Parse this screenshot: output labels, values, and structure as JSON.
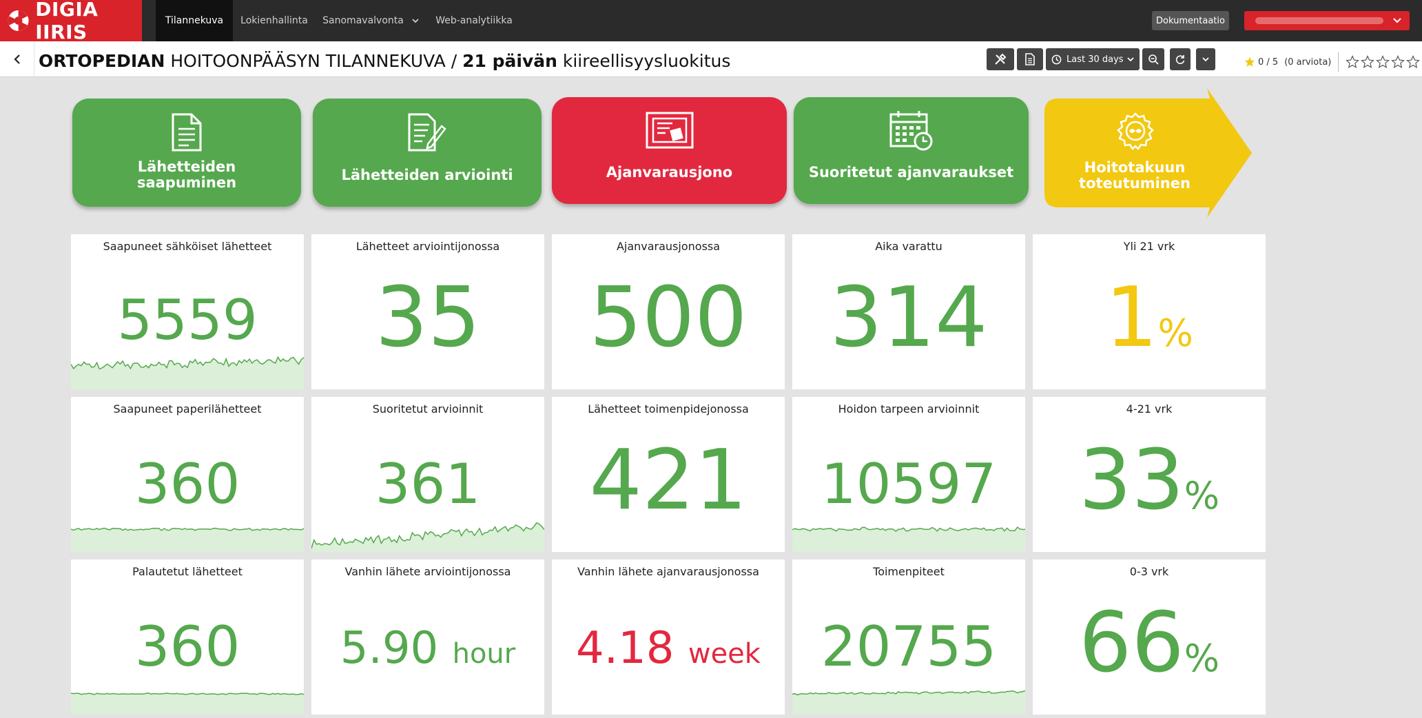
{
  "topbar": {
    "logo_text": "DIGIA IIRIS",
    "nav": [
      {
        "label": "Tilannekuva",
        "active": true
      },
      {
        "label": "Lokienhallinta",
        "active": false
      },
      {
        "label": "Sanomavalvonta",
        "active": false,
        "dropdown": true
      },
      {
        "label": "Web-analytiikka",
        "active": false
      }
    ],
    "doc_button": "Dokumentaatio",
    "colors": {
      "bar": "#2b2b2b",
      "brand": "#d8232a"
    }
  },
  "titlebar": {
    "title_bold_1": "ORTOPEDIAN",
    "title_normal_1": " HOITOONPÄÄSYN TILANNEKUVA / ",
    "title_bold_2": "21 päivän",
    "title_normal_2": " kiireellisyysluokitus",
    "time_range": "Last 30 days",
    "rating_score": "0 / 5",
    "rating_count": "(0 arviota)"
  },
  "process": [
    {
      "label": "Lähetteiden saapuminen",
      "icon": "document-icon",
      "color": "#55a84d"
    },
    {
      "label": "Lähetteiden arviointi",
      "icon": "document-edit-icon",
      "color": "#55a84d"
    },
    {
      "label": "Ajanvarausjono",
      "icon": "queue-board-icon",
      "color": "#e2283f"
    },
    {
      "label": "Suoritetut ajanvaraukset",
      "icon": "calendar-clock-icon",
      "color": "#55a84d"
    },
    {
      "label": "Hoitotakuun toteutuminen",
      "icon": "award-badge-icon",
      "color": "#f2c811"
    }
  ],
  "cards": [
    {
      "title": "Saapuneet sähköiset lähetteet",
      "value": "5559",
      "unit": "",
      "color": "green",
      "sparkline": true
    },
    {
      "title": "Lähetteet arviointijonossa",
      "value": "35",
      "unit": "",
      "color": "green",
      "sparkline": false
    },
    {
      "title": "Ajanvarausjonossa",
      "value": "500",
      "unit": "",
      "color": "green",
      "sparkline": false
    },
    {
      "title": "Aika varattu",
      "value": "314",
      "unit": "",
      "color": "green",
      "sparkline": false
    },
    {
      "title": "Yli 21 vrk",
      "value": "1",
      "unit": "%",
      "color": "yellow",
      "sparkline": false
    },
    {
      "title": "Saapuneet paperilähetteet",
      "value": "360",
      "unit": "",
      "color": "green",
      "sparkline": true
    },
    {
      "title": "Suoritetut arvioinnit",
      "value": "361",
      "unit": "",
      "color": "green",
      "sparkline": true
    },
    {
      "title": "Lähetteet toimenpidejonossa",
      "value": "421",
      "unit": "",
      "color": "green",
      "sparkline": false
    },
    {
      "title": "Hoidon tarpeen arvioinnit",
      "value": "10597",
      "unit": "",
      "color": "green",
      "sparkline": true
    },
    {
      "title": "4-21 vrk",
      "value": "33",
      "unit": "%",
      "color": "green",
      "sparkline": false
    },
    {
      "title": "Palautetut lähetteet",
      "value": "360",
      "unit": "",
      "color": "green",
      "sparkline": true
    },
    {
      "title": "Vanhin lähete arviointijonossa",
      "value": "5.90",
      "unit": "hour",
      "color": "green",
      "sparkline": false
    },
    {
      "title": "Vanhin lähete ajanvarausjonossa",
      "value": "4.18",
      "unit": "week",
      "color": "red",
      "sparkline": false
    },
    {
      "title": "Toimenpiteet",
      "value": "20755",
      "unit": "",
      "color": "green",
      "sparkline": true
    },
    {
      "title": "0-3 vrk",
      "value": "66",
      "unit": "%",
      "color": "green",
      "sparkline": false
    }
  ]
}
